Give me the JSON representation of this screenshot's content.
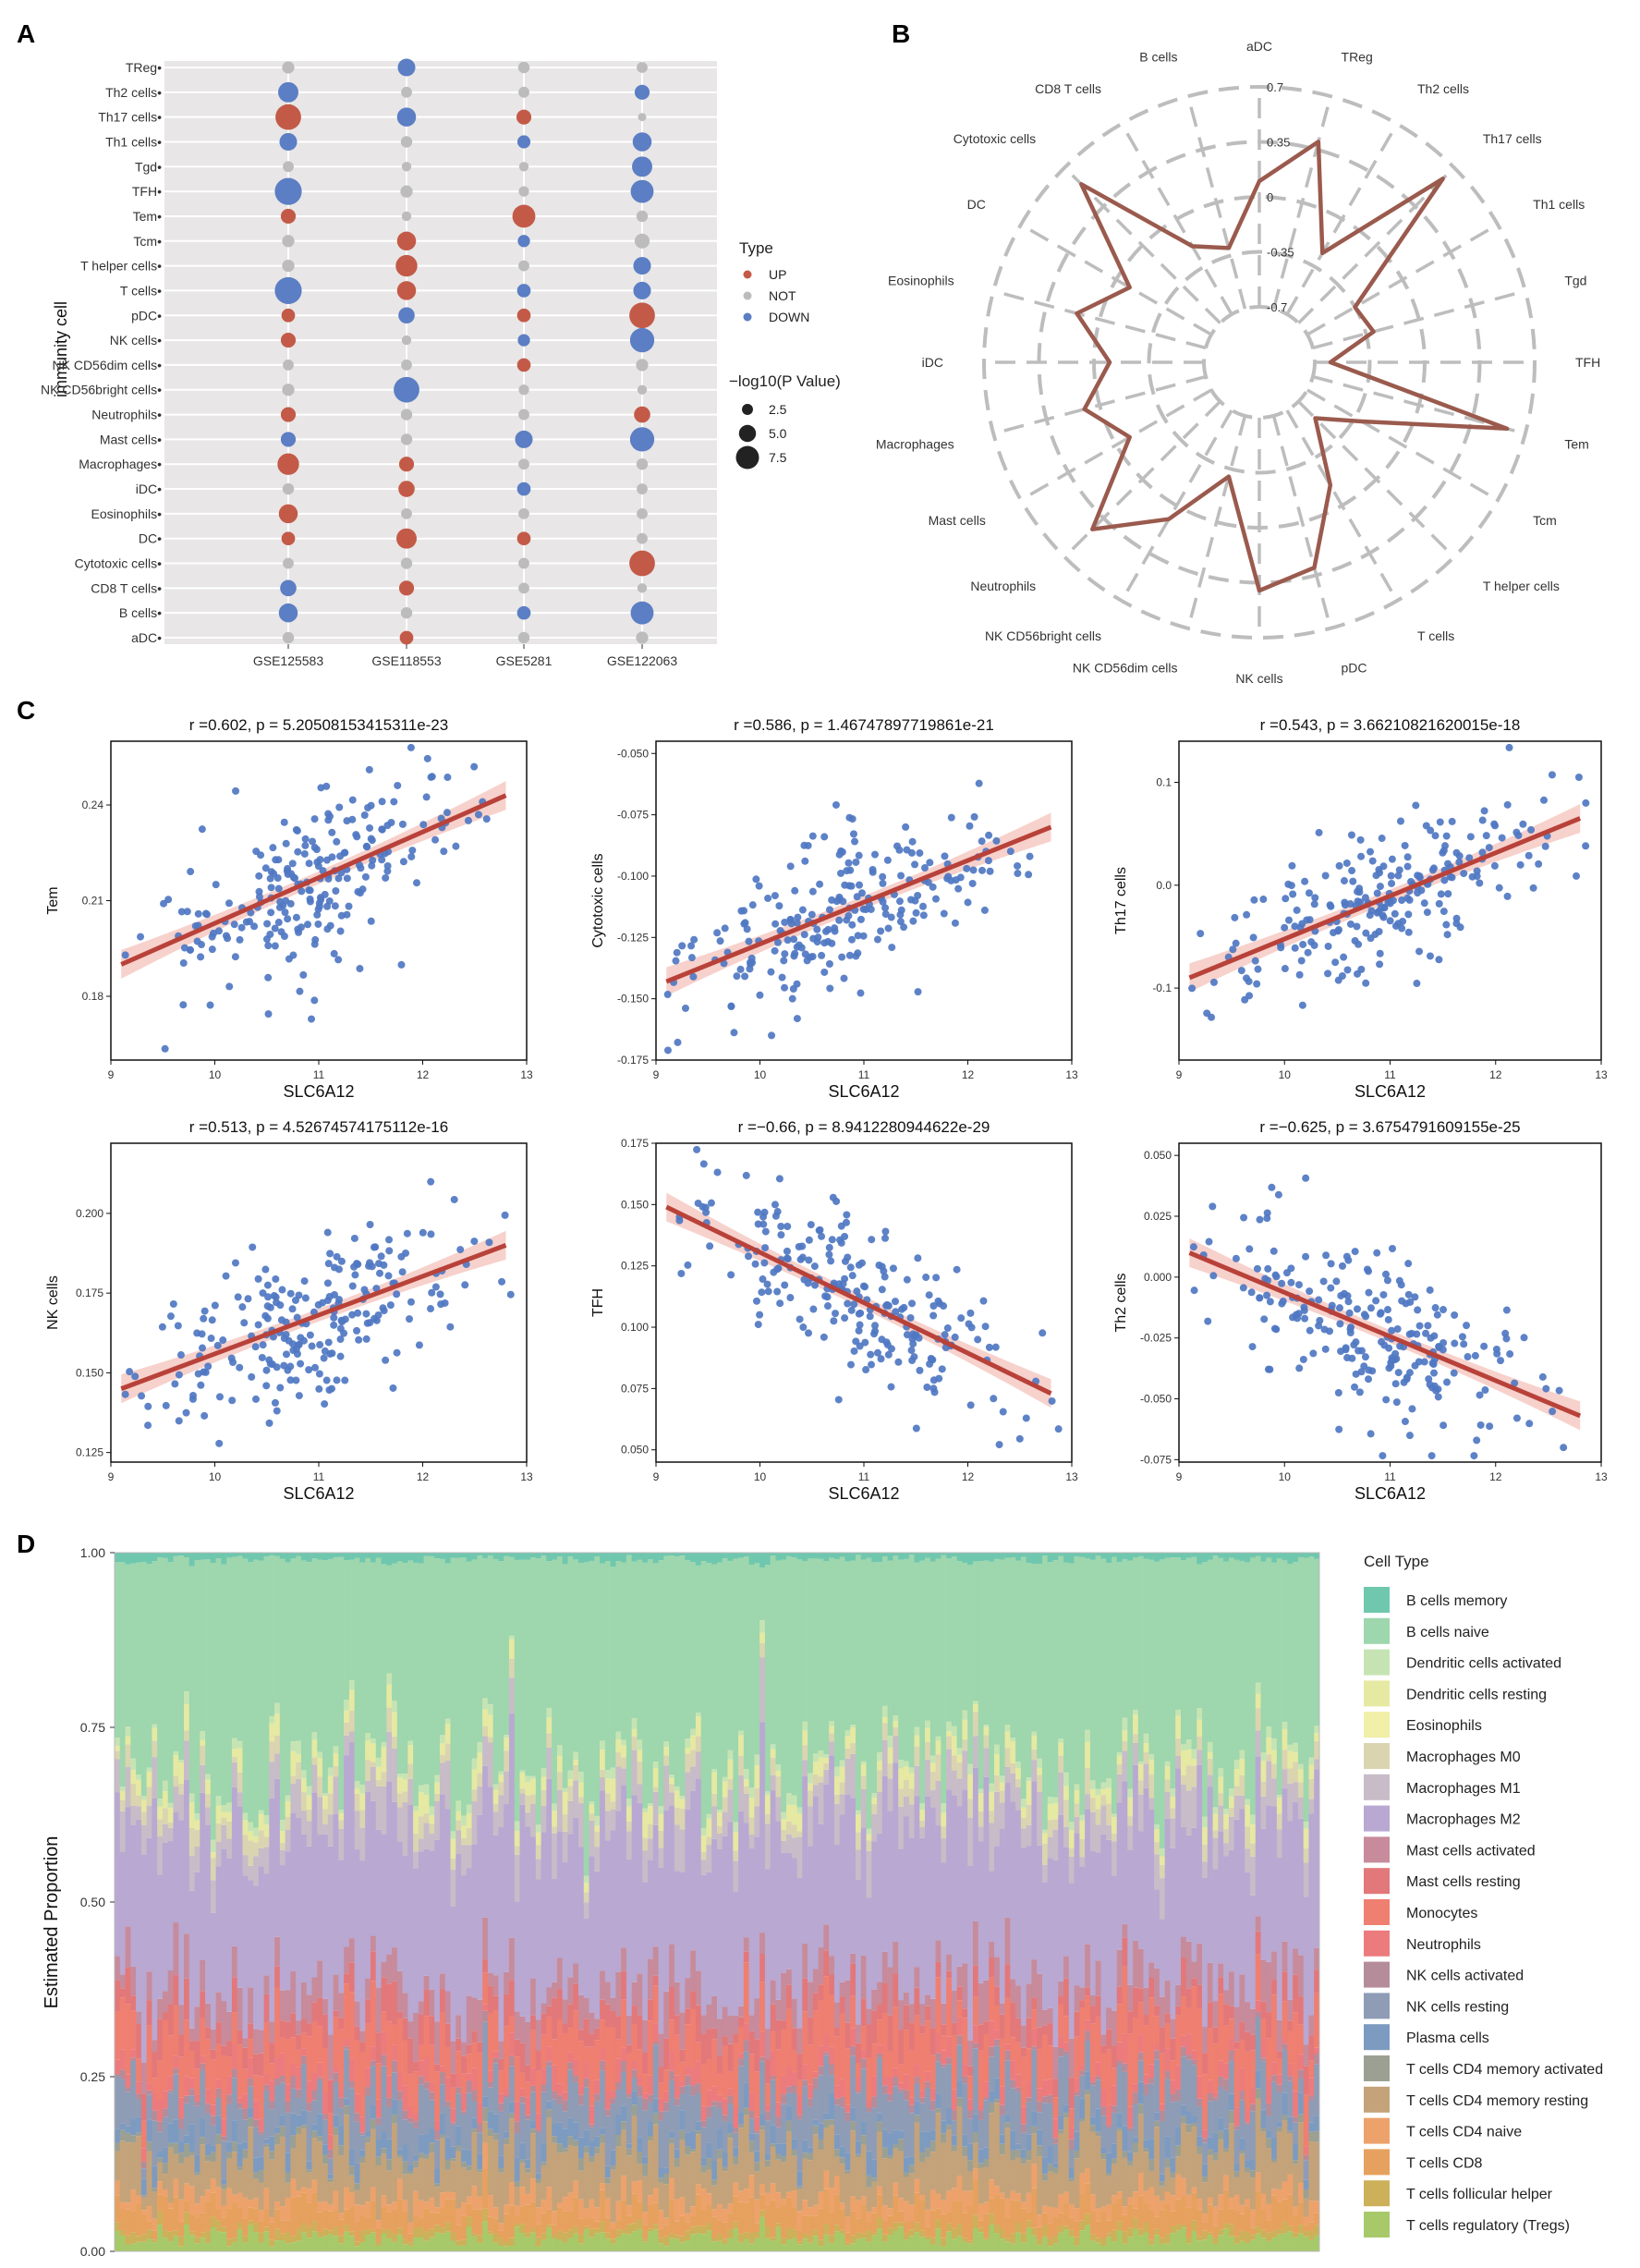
{
  "panels": {
    "a": "A",
    "b": "B",
    "c": "C",
    "d": "D"
  },
  "chart_data": [
    {
      "type": "scatter",
      "subtype": "dot-matrix",
      "ylabel": "immunity cell",
      "datasets": [
        "GSE125583",
        "GSE118553",
        "GSE5281",
        "GSE122063"
      ],
      "cells": [
        "TReg",
        "Th2 cells",
        "Th17 cells",
        "Th1 cells",
        "Tgd",
        "TFH",
        "Tem",
        "Tcm",
        "T helper cells",
        "T cells",
        "pDC",
        "NK cells",
        "NK CD56dim cells",
        "NK CD56bright cells",
        "Neutrophils",
        "Mast cells",
        "Macrophages",
        "iDC",
        "Eosinophils",
        "DC",
        "Cytotoxic cells",
        "CD8 T cells",
        "B cells",
        "aDC"
      ],
      "types": [
        [
          "NOT",
          "DOWN",
          "NOT",
          "NOT"
        ],
        [
          "DOWN",
          "NOT",
          "NOT",
          "DOWN"
        ],
        [
          "UP",
          "DOWN",
          "UP",
          "NOT"
        ],
        [
          "DOWN",
          "NOT",
          "DOWN",
          "DOWN"
        ],
        [
          "NOT",
          "NOT",
          "NOT",
          "DOWN"
        ],
        [
          "DOWN",
          "NOT",
          "NOT",
          "DOWN"
        ],
        [
          "UP",
          "NOT",
          "UP",
          "NOT"
        ],
        [
          "NOT",
          "UP",
          "DOWN",
          "NOT"
        ],
        [
          "NOT",
          "UP",
          "NOT",
          "DOWN"
        ],
        [
          "DOWN",
          "UP",
          "DOWN",
          "DOWN"
        ],
        [
          "UP",
          "DOWN",
          "UP",
          "UP"
        ],
        [
          "UP",
          "NOT",
          "DOWN",
          "DOWN"
        ],
        [
          "NOT",
          "NOT",
          "UP",
          "NOT"
        ],
        [
          "NOT",
          "DOWN",
          "NOT",
          "NOT"
        ],
        [
          "UP",
          "NOT",
          "NOT",
          "UP"
        ],
        [
          "DOWN",
          "NOT",
          "DOWN",
          "DOWN"
        ],
        [
          "UP",
          "UP",
          "NOT",
          "NOT"
        ],
        [
          "NOT",
          "UP",
          "DOWN",
          "NOT"
        ],
        [
          "UP",
          "NOT",
          "NOT",
          "NOT"
        ],
        [
          "UP",
          "UP",
          "UP",
          "NOT"
        ],
        [
          "NOT",
          "NOT",
          "NOT",
          "UP"
        ],
        [
          "DOWN",
          "UP",
          "NOT",
          "NOT"
        ],
        [
          "DOWN",
          "NOT",
          "DOWN",
          "DOWN"
        ],
        [
          "NOT",
          "UP",
          "NOT",
          "NOT"
        ]
      ],
      "neglog10p": [
        [
          2.5,
          4.5,
          2.2,
          2.0
        ],
        [
          5.5,
          2.0,
          2.0,
          3.5
        ],
        [
          7.5,
          5.0,
          3.5,
          1.0
        ],
        [
          4.5,
          2.2,
          2.8,
          5.0
        ],
        [
          2.0,
          1.5,
          1.5,
          5.5
        ],
        [
          8.0,
          2.5,
          1.8,
          6.5
        ],
        [
          3.5,
          1.5,
          6.5,
          2.2
        ],
        [
          2.5,
          5.0,
          2.5,
          3.5
        ],
        [
          2.5,
          6.0,
          2.0,
          4.5
        ],
        [
          8.0,
          5.0,
          3.0,
          4.5
        ],
        [
          3.0,
          4.0,
          3.0,
          7.5
        ],
        [
          3.5,
          1.5,
          2.5,
          7.0
        ],
        [
          2.0,
          2.0,
          3.0,
          2.5
        ],
        [
          2.5,
          7.5,
          1.8,
          1.5
        ],
        [
          3.5,
          2.2,
          2.0,
          4.0
        ],
        [
          3.5,
          2.2,
          4.5,
          7.0
        ],
        [
          6.0,
          3.5,
          2.0,
          2.2
        ],
        [
          2.2,
          4.0,
          3.0,
          2.0
        ],
        [
          5.0,
          2.0,
          2.0,
          2.0
        ],
        [
          3.0,
          5.5,
          3.0,
          2.0
        ],
        [
          2.0,
          2.2,
          2.0,
          7.5
        ],
        [
          4.0,
          3.5,
          2.0,
          1.5
        ],
        [
          5.0,
          2.2,
          3.0,
          6.5
        ],
        [
          2.2,
          3.0,
          2.2,
          2.5
        ]
      ],
      "legend_type_title": "Type",
      "legend_types": [
        "UP",
        "NOT",
        "DOWN"
      ],
      "legend_size_title": "−log10(P Value)",
      "legend_sizes": [
        "2.5",
        "5.0",
        "7.5"
      ],
      "colors": {
        "UP": "#c35a48",
        "NOT": "#bcbcbc",
        "DOWN": "#5b7ec4"
      }
    },
    {
      "type": "radar",
      "axes": [
        "aDC",
        "TReg",
        "Th2 cells",
        "Th17 cells",
        "Th1 cells",
        "Tgd",
        "TFH",
        "Tem",
        "Tcm",
        "T helper cells",
        "T cells",
        "pDC",
        "NK cells",
        "NK CD56dim cells",
        "NK CD56bright cells",
        "Neutrophils",
        "Mast cells",
        "Macrophages",
        "iDC",
        "Eosinophils",
        "DC",
        "Cytotoxic cells",
        "CD8 T cells",
        "B cells"
      ],
      "values": [
        0.1,
        0.4,
        -0.25,
        0.6,
        -0.35,
        -0.3,
        -0.6,
        0.58,
        -0.3,
        -0.55,
        -0.15,
        0.3,
        0.4,
        -0.3,
        0.1,
        0.45,
        -0.1,
        0.1,
        -0.1,
        0.15,
        -0.1,
        0.55,
        -0.2,
        -0.3
      ],
      "rlim": [
        -0.7,
        0.7
      ],
      "rticks": [
        "0.7",
        "0.35",
        "0",
        "-0.35",
        "-0.7"
      ],
      "line_color": "#9a5a4d"
    },
    {
      "type": "scatter",
      "xlabel": "SLC6A12",
      "plots": [
        {
          "title": "r =0.602, p = 5.20508153415311e-23",
          "ylabel": "Tem",
          "xlim": [
            9,
            13
          ],
          "ylim": [
            0.16,
            0.26
          ],
          "yticks": [
            "0.18",
            "0.21",
            "0.24"
          ],
          "ytickvals": [
            0.18,
            0.21,
            0.24
          ],
          "fit": [
            [
              9.1,
              0.19
            ],
            [
              12.8,
              0.243
            ]
          ],
          "trend": "up"
        },
        {
          "title": "r =0.586, p = 1.46747897719861e-21",
          "ylabel": "Cytotoxic cells",
          "xlim": [
            9,
            13
          ],
          "ylim": [
            -0.175,
            -0.045
          ],
          "yticks": [
            "-0.050",
            "-0.075",
            "-0.100",
            "-0.125",
            "-0.150",
            "-0.175"
          ],
          "ytickvals": [
            -0.05,
            -0.075,
            -0.1,
            -0.125,
            -0.15,
            -0.175
          ],
          "fit": [
            [
              9.1,
              -0.143
            ],
            [
              12.8,
              -0.08
            ]
          ],
          "trend": "up"
        },
        {
          "title": "r =0.543, p = 3.66210821620015e-18",
          "ylabel": "Th17 cells",
          "xlim": [
            9,
            13
          ],
          "ylim": [
            -0.17,
            0.14
          ],
          "yticks": [
            "0.1",
            "0.0",
            "-0.1"
          ],
          "ytickvals": [
            0.1,
            0.0,
            -0.1
          ],
          "fit": [
            [
              9.1,
              -0.09
            ],
            [
              12.8,
              0.065
            ]
          ],
          "trend": "up"
        },
        {
          "title": "r =0.513, p = 4.52674574175112e-16",
          "ylabel": "NK cells",
          "xlim": [
            9,
            13
          ],
          "ylim": [
            0.122,
            0.222
          ],
          "yticks": [
            "0.200",
            "0.175",
            "0.150",
            "0.125"
          ],
          "ytickvals": [
            0.2,
            0.175,
            0.15,
            0.125
          ],
          "fit": [
            [
              9.1,
              0.145
            ],
            [
              12.8,
              0.19
            ]
          ],
          "trend": "up"
        },
        {
          "title": "r =−0.66, p = 8.9412280944622e-29",
          "ylabel": "TFH",
          "xlim": [
            9,
            13
          ],
          "ylim": [
            0.045,
            0.175
          ],
          "yticks": [
            "0.175",
            "0.150",
            "0.125",
            "0.100",
            "0.075",
            "0.050"
          ],
          "ytickvals": [
            0.175,
            0.15,
            0.125,
            0.1,
            0.075,
            0.05
          ],
          "fit": [
            [
              9.1,
              0.149
            ],
            [
              12.8,
              0.073
            ]
          ],
          "trend": "down"
        },
        {
          "title": "r =−0.625, p = 3.6754791609155e-25",
          "ylabel": "Th2 cells",
          "xlim": [
            9,
            13
          ],
          "ylim": [
            -0.076,
            0.055
          ],
          "yticks": [
            "0.050",
            "0.025",
            "0.000",
            "-0.025",
            "-0.050",
            "-0.075"
          ],
          "ytickvals": [
            0.05,
            0.025,
            0.0,
            -0.025,
            -0.05,
            -0.075
          ],
          "fit": [
            [
              9.1,
              0.01
            ],
            [
              12.8,
              -0.057
            ]
          ],
          "trend": "down"
        }
      ],
      "xticks": [
        "9",
        "10",
        "11",
        "12",
        "13"
      ],
      "xtickvals": [
        9,
        10,
        11,
        12,
        13
      ],
      "point_color": "#4f77c2",
      "line_color": "#b8423a"
    },
    {
      "type": "bar",
      "subtype": "stacked-100",
      "ylabel": "Estimated Proportion",
      "yticks": [
        "1.00",
        "0.75",
        "0.50",
        "0.25",
        "0.00"
      ],
      "ytickvals": [
        1.0,
        0.75,
        0.5,
        0.25,
        0.0
      ],
      "n_samples": 226,
      "legend_title": "Cell Type",
      "cell_types": [
        "B cells memory",
        "B cells naive",
        "Dendritic cells activated",
        "Dendritic cells resting",
        "Eosinophils",
        "Macrophages M0",
        "Macrophages M1",
        "Macrophages M2",
        "Mast cells activated",
        "Mast cells resting",
        "Monocytes",
        "Neutrophils",
        "NK cells activated",
        "NK cells resting",
        "Plasma cells",
        "T cells CD4 memory activated",
        "T cells CD4 memory resting",
        "T cells CD4 naive",
        "T cells CD8",
        "T cells follicular helper",
        "T cells regulatory (Tregs)"
      ],
      "colors": [
        "#6fc7ae",
        "#9ed6ad",
        "#c6e4b3",
        "#e6e9a2",
        "#f1efa8",
        "#dbd4b0",
        "#c7bcc7",
        "#b8a8d2",
        "#c78b9b",
        "#e2787a",
        "#ef7f70",
        "#ec7b7e",
        "#b58c9a",
        "#8e9cb6",
        "#7d9bc0",
        "#9ca092",
        "#c4a37a",
        "#eda26c",
        "#e6a15e",
        "#cdb05a",
        "#a7c96a"
      ],
      "mean_proportions": [
        0.01,
        0.29,
        0.01,
        0.02,
        0.0,
        0.02,
        0.04,
        0.22,
        0.04,
        0.03,
        0.06,
        0.02,
        0.01,
        0.05,
        0.02,
        0.01,
        0.06,
        0.02,
        0.03,
        0.01,
        0.02
      ]
    }
  ]
}
